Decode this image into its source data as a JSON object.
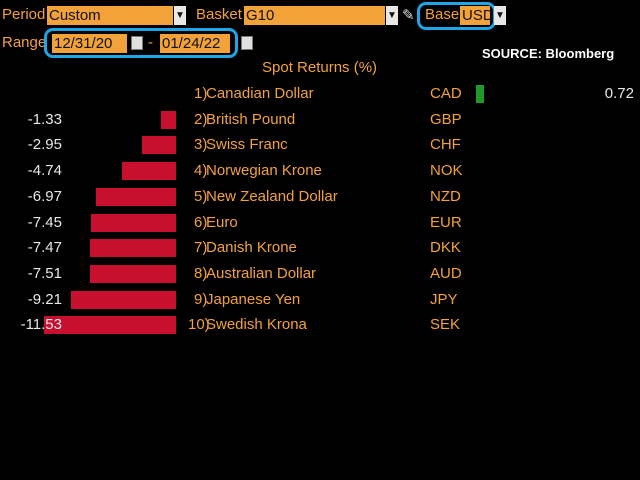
{
  "toolbar": {
    "period_label": "Period",
    "period_value": "Custom",
    "basket_label": "Basket",
    "basket_value": "G10",
    "base_label": "Base",
    "base_value": "USD",
    "range_label": "Range",
    "range_start": "12/31/20",
    "range_separator": "-",
    "range_end": "01/24/22"
  },
  "source": "SOURCE: Bloomberg",
  "chart_data": {
    "type": "bar",
    "title": "Spot Returns (%)",
    "xlim": [
      -11.53,
      0.72
    ],
    "rows": [
      {
        "rank": "1)",
        "name": "Canadian Dollar",
        "code": "CAD",
        "value": 0.72,
        "label": "0.72"
      },
      {
        "rank": "2)",
        "name": "British Pound",
        "code": "GBP",
        "value": -1.33,
        "label": "-1.33"
      },
      {
        "rank": "3)",
        "name": "Swiss Franc",
        "code": "CHF",
        "value": -2.95,
        "label": "-2.95"
      },
      {
        "rank": "4)",
        "name": "Norwegian Krone",
        "code": "NOK",
        "value": -4.74,
        "label": "-4.74"
      },
      {
        "rank": "5)",
        "name": "New Zealand Dollar",
        "code": "NZD",
        "value": -6.97,
        "label": "-6.97"
      },
      {
        "rank": "6)",
        "name": "Euro",
        "code": "EUR",
        "value": -7.45,
        "label": "-7.45"
      },
      {
        "rank": "7)",
        "name": "Danish Krone",
        "code": "DKK",
        "value": -7.47,
        "label": "-7.47"
      },
      {
        "rank": "8)",
        "name": "Australian Dollar",
        "code": "AUD",
        "value": -7.51,
        "label": "-7.51"
      },
      {
        "rank": "9)",
        "name": "Japanese Yen",
        "code": "JPY",
        "value": -9.21,
        "label": "-9.21"
      },
      {
        "rank": "10)",
        "name": "Swedish Krona",
        "code": "SEK",
        "value": -11.53,
        "label": "-11.53"
      }
    ]
  },
  "colors": {
    "accent": "#f3a23a",
    "negative_bar": "#c8102e",
    "positive_bar": "#1f9a2a",
    "highlight": "#1ea6e6"
  }
}
